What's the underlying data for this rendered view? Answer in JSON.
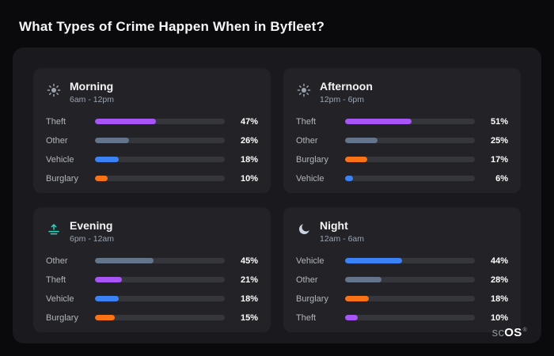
{
  "page": {
    "title": "What Types of Crime Happen When in Byfleet?"
  },
  "brand": {
    "prefix": "sc",
    "suffix": "OS",
    "reg": "®"
  },
  "colors": {
    "theft": "#a855f7",
    "other": "#64748b",
    "vehicle": "#3b82f6",
    "burglary": "#f97316",
    "evening_icon": "#2dd4bf",
    "panel_bg": "#1a1a1e",
    "card_bg": "#232327",
    "track_bg": "#36363d"
  },
  "chart_data": [
    {
      "type": "bar",
      "title": "Morning",
      "subtitle": "6am - 12pm",
      "icon": "sun-icon",
      "categories": [
        "Theft",
        "Other",
        "Vehicle",
        "Burglary"
      ],
      "values": [
        47,
        26,
        18,
        10
      ],
      "value_labels": [
        "47%",
        "26%",
        "18%",
        "10%"
      ],
      "bar_colors": [
        "#a855f7",
        "#64748b",
        "#3b82f6",
        "#f97316"
      ],
      "xlim": [
        0,
        100
      ]
    },
    {
      "type": "bar",
      "title": "Afternoon",
      "subtitle": "12pm - 6pm",
      "icon": "sun-icon",
      "categories": [
        "Theft",
        "Other",
        "Burglary",
        "Vehicle"
      ],
      "values": [
        51,
        25,
        17,
        6
      ],
      "value_labels": [
        "51%",
        "25%",
        "17%",
        "6%"
      ],
      "bar_colors": [
        "#a855f7",
        "#64748b",
        "#f97316",
        "#3b82f6"
      ],
      "xlim": [
        0,
        100
      ]
    },
    {
      "type": "bar",
      "title": "Evening",
      "subtitle": "6pm - 12am",
      "icon": "sunrise-icon",
      "categories": [
        "Other",
        "Theft",
        "Vehicle",
        "Burglary"
      ],
      "values": [
        45,
        21,
        18,
        15
      ],
      "value_labels": [
        "45%",
        "21%",
        "18%",
        "15%"
      ],
      "bar_colors": [
        "#64748b",
        "#a855f7",
        "#3b82f6",
        "#f97316"
      ],
      "xlim": [
        0,
        100
      ]
    },
    {
      "type": "bar",
      "title": "Night",
      "subtitle": "12am - 6am",
      "icon": "moon-icon",
      "categories": [
        "Vehicle",
        "Other",
        "Burglary",
        "Theft"
      ],
      "values": [
        44,
        28,
        18,
        10
      ],
      "value_labels": [
        "44%",
        "28%",
        "18%",
        "10%"
      ],
      "bar_colors": [
        "#3b82f6",
        "#64748b",
        "#f97316",
        "#a855f7"
      ],
      "xlim": [
        0,
        100
      ]
    }
  ]
}
